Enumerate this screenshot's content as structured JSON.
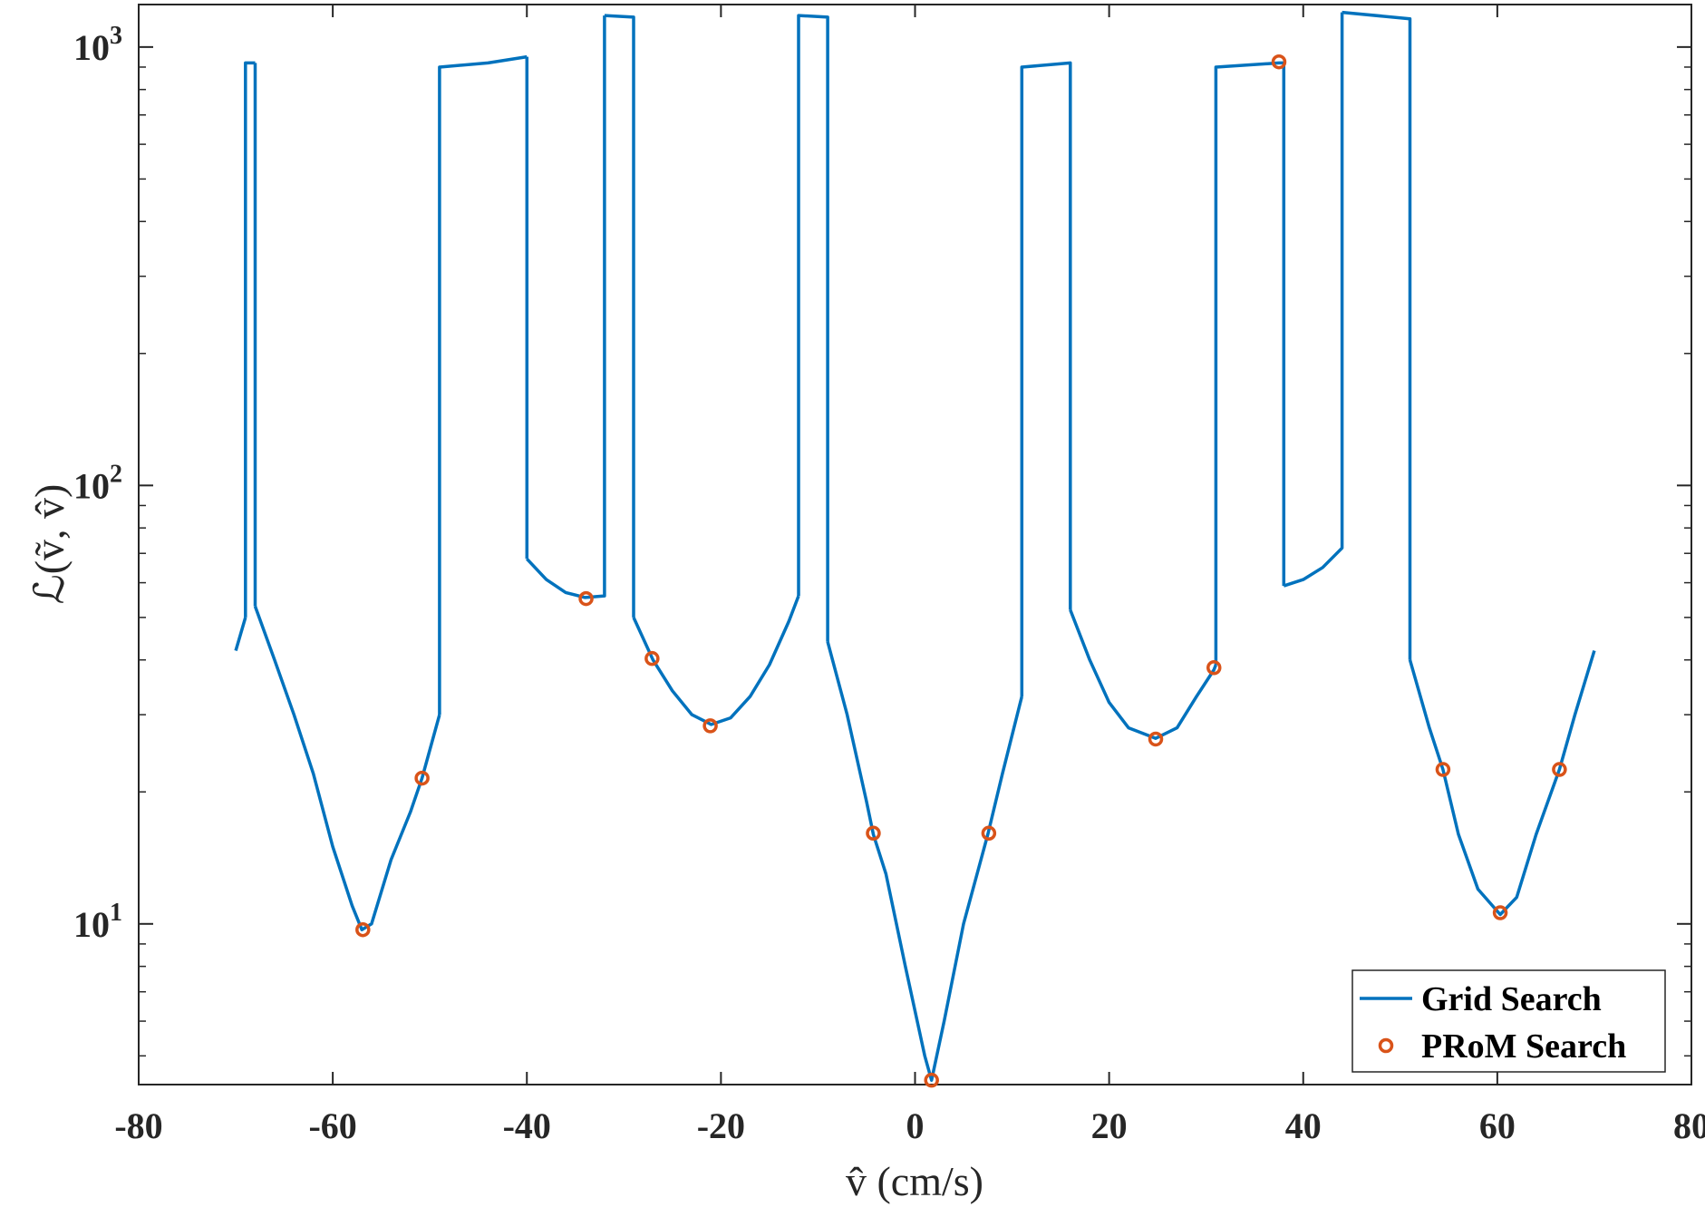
{
  "chart_data": {
    "type": "line",
    "xlabel": "v̂ (cm/s)",
    "ylabel": "ℒ(ṽ, v̂)",
    "xlim": [
      -80,
      80
    ],
    "ylim": [
      4.3,
      1250
    ],
    "yscale": "log",
    "x_ticks": [
      "-80",
      "-60",
      "-40",
      "-20",
      "0",
      "20",
      "40",
      "60",
      "80"
    ],
    "y_ticks": [
      {
        "base": "10",
        "exp": "1",
        "value": 10
      },
      {
        "base": "10",
        "exp": "2",
        "value": 100
      },
      {
        "base": "10",
        "exp": "3",
        "value": 1000
      }
    ],
    "grid": false,
    "legend": "bottom-right",
    "colors": {
      "grid_search": "#0072BD",
      "prom_search": "#D95319"
    },
    "series": [
      {
        "name": "Grid Search",
        "style": "line",
        "segments": [
          {
            "x": [
              -70,
              -69
            ],
            "y": [
              42,
              50
            ]
          },
          {
            "x": [
              -69,
              -69,
              -68
            ],
            "y": [
              50,
              920,
              920
            ]
          },
          {
            "x": [
              -68,
              -68
            ],
            "y": [
              920,
              53
            ]
          },
          {
            "x": [
              -68,
              -66,
              -64,
              -62,
              -60,
              -58,
              -57,
              -56,
              -54,
              -52,
              -50.8,
              -49
            ],
            "y": [
              53,
              40,
              30,
              22,
              15,
              11,
              9.7,
              10,
              14,
              18,
              21.5,
              30
            ]
          },
          {
            "x": [
              -49,
              -49,
              -44,
              -40
            ],
            "y": [
              30,
              900,
              920,
              950
            ]
          },
          {
            "x": [
              -40,
              -40
            ],
            "y": [
              950,
              68
            ]
          },
          {
            "x": [
              -40,
              -38,
              -36,
              -34,
              -32,
              -32
            ],
            "y": [
              68,
              61,
              57,
              55.5,
              56,
              1180
            ]
          },
          {
            "x": [
              -32,
              -29,
              -29
            ],
            "y": [
              1180,
              1170,
              50
            ]
          },
          {
            "x": [
              -29,
              -27,
              -25,
              -23,
              -21,
              -19,
              -17,
              -15,
              -13,
              -12
            ],
            "y": [
              50,
              40,
              34,
              30,
              28.5,
              29.5,
              33,
              39,
              49,
              56
            ]
          },
          {
            "x": [
              -12,
              -12,
              -9,
              -9
            ],
            "y": [
              56,
              1180,
              1170,
              44
            ]
          },
          {
            "x": [
              -9,
              -7,
              -5,
              -4.3,
              -3,
              -1,
              1,
              1.7,
              3,
              5,
              7.5,
              9,
              11
            ],
            "y": [
              44,
              30,
              19,
              16,
              13,
              8,
              5,
              4.4,
              6,
              10,
              16,
              22,
              33
            ]
          },
          {
            "x": [
              11,
              11,
              16,
              16
            ],
            "y": [
              33,
              900,
              920,
              52
            ]
          },
          {
            "x": [
              16,
              18,
              20,
              22,
              24.8,
              27,
              29,
              30.8,
              31
            ],
            "y": [
              52,
              40,
              32,
              28,
              26.5,
              28,
              33,
              38,
              39
            ]
          },
          {
            "x": [
              31,
              31,
              37.5,
              38,
              38
            ],
            "y": [
              39,
              900,
              920,
              920,
              59
            ]
          },
          {
            "x": [
              38,
              40,
              42,
              44,
              44
            ],
            "y": [
              59,
              61,
              65,
              72,
              1200
            ]
          },
          {
            "x": [
              44,
              51,
              51
            ],
            "y": [
              1200,
              1160,
              40
            ]
          },
          {
            "x": [
              51,
              53,
              54.4,
              56,
              58,
              60.3,
              62,
              64,
              66.4,
              68,
              70
            ],
            "y": [
              40,
              28,
              22.5,
              16,
              12,
              10.5,
              11.5,
              16,
              22.5,
              30,
              42
            ]
          }
        ]
      },
      {
        "name": "PRoM Search",
        "style": "markers",
        "x": [
          -56.9,
          -50.8,
          -33.9,
          -27.1,
          -21.1,
          -4.3,
          1.7,
          7.6,
          24.8,
          30.8,
          37.5,
          54.4,
          60.3,
          66.4
        ],
        "y": [
          9.7,
          21.5,
          55.2,
          40.3,
          28.3,
          16.1,
          4.4,
          16.1,
          26.4,
          38.4,
          925,
          22.5,
          10.6,
          22.5
        ]
      }
    ]
  }
}
